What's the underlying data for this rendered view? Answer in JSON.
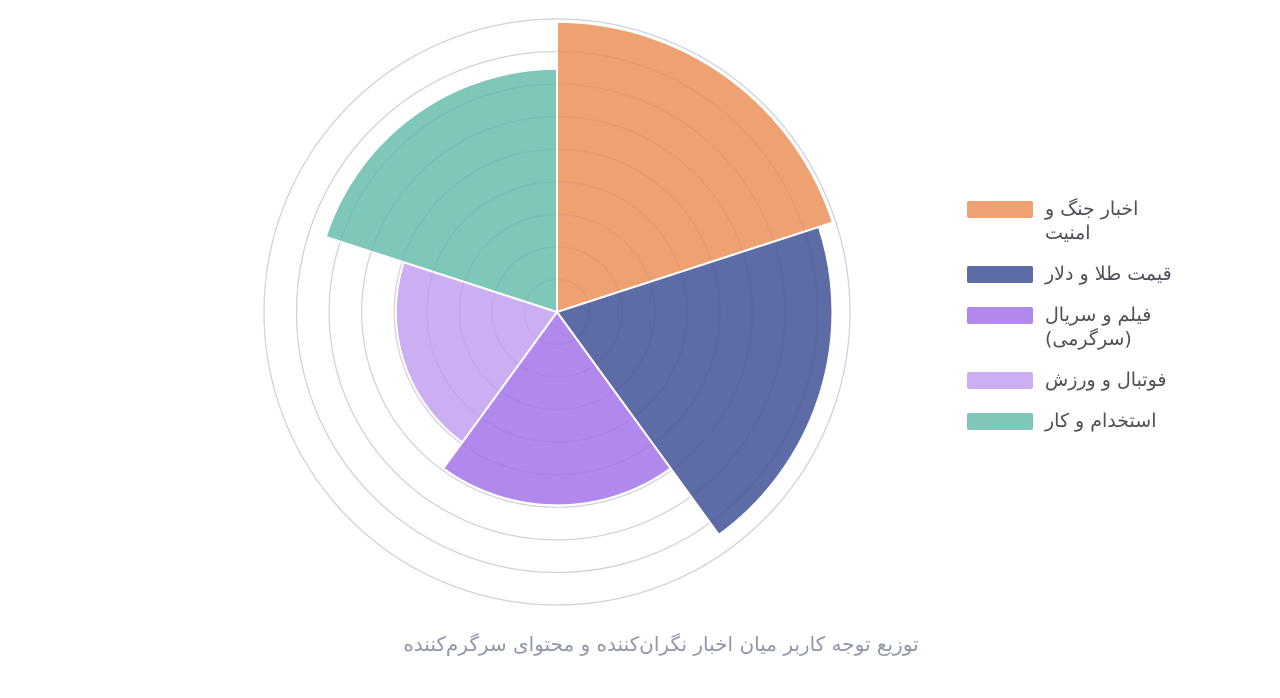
{
  "page": {
    "background": "#ffffff"
  },
  "chart_data": {
    "type": "polar_area",
    "title": "توزیع توجه کاربر میان اخبار نگران‌کننده و محتوای سرگرم‌کننده",
    "categories": [
      "اخبار جنگ و\nامنیت",
      "قیمت طلا و دلار",
      "فیلم و سریال\n(سرگرمی)",
      "فوتبال و ورزش",
      "استخدام و کار"
    ],
    "slugs": [
      "war-security-news",
      "gold-dollar-price",
      "movies-series-entertainment",
      "football-sports",
      "employment-work"
    ],
    "values": [
      99,
      94,
      66,
      55,
      83
    ],
    "value_unit": "percent of outer grid-ring radius (chart displays no numeric tick labels)",
    "estimated_share_pct": [
      30,
      27,
      13,
      9,
      21
    ],
    "colors": [
      "#eea271",
      "#5d6ba6",
      "#b188ec",
      "#ccaff2",
      "#7ec7b9"
    ],
    "sector_angle_deg": 72,
    "start": "top",
    "direction": "clockwise",
    "grid": {
      "rings": 9,
      "ring_color": "#d9dce4",
      "ring_overlay_color": "rgba(40,45,80,0.05)"
    },
    "wedge_border_color": "#ffffff",
    "legend_position": "right",
    "title_color": "#8f97a8",
    "legend_text_color": "#4e4f58"
  }
}
